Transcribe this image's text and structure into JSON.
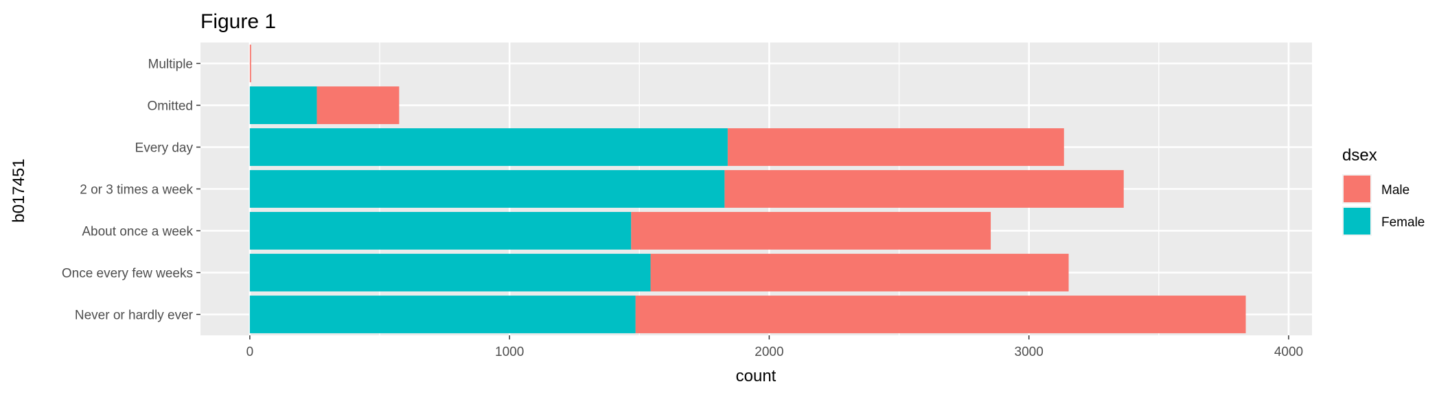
{
  "chart_data": {
    "type": "bar",
    "orientation": "horizontal",
    "stacked": true,
    "title": "Figure 1",
    "xlabel": "count",
    "ylabel": "b017451",
    "categories": [
      "Never or hardly ever",
      "Once every few weeks",
      "About once a week",
      "2 or 3 times a week",
      "Every day",
      "Omitted",
      "Multiple"
    ],
    "x_ticks": [
      "0",
      "1000",
      "2000",
      "3000",
      "4000"
    ],
    "xlim": [
      -190,
      4090
    ],
    "grid": true,
    "series": [
      {
        "name": "Female",
        "color": "#00BFC4",
        "values": [
          1485,
          1543,
          1468,
          1828,
          1840,
          258,
          0
        ]
      },
      {
        "name": "Male",
        "color": "#F8766D",
        "values": [
          2350,
          1610,
          1385,
          1537,
          1295,
          317,
          5
        ]
      }
    ],
    "legend": {
      "title": "dsex",
      "position": "right",
      "entries": [
        {
          "label": "Male",
          "color": "#F8766D"
        },
        {
          "label": "Female",
          "color": "#00BFC4"
        }
      ]
    },
    "panel_background": "#EBEBEB",
    "gridline_color": "#FFFFFF"
  }
}
